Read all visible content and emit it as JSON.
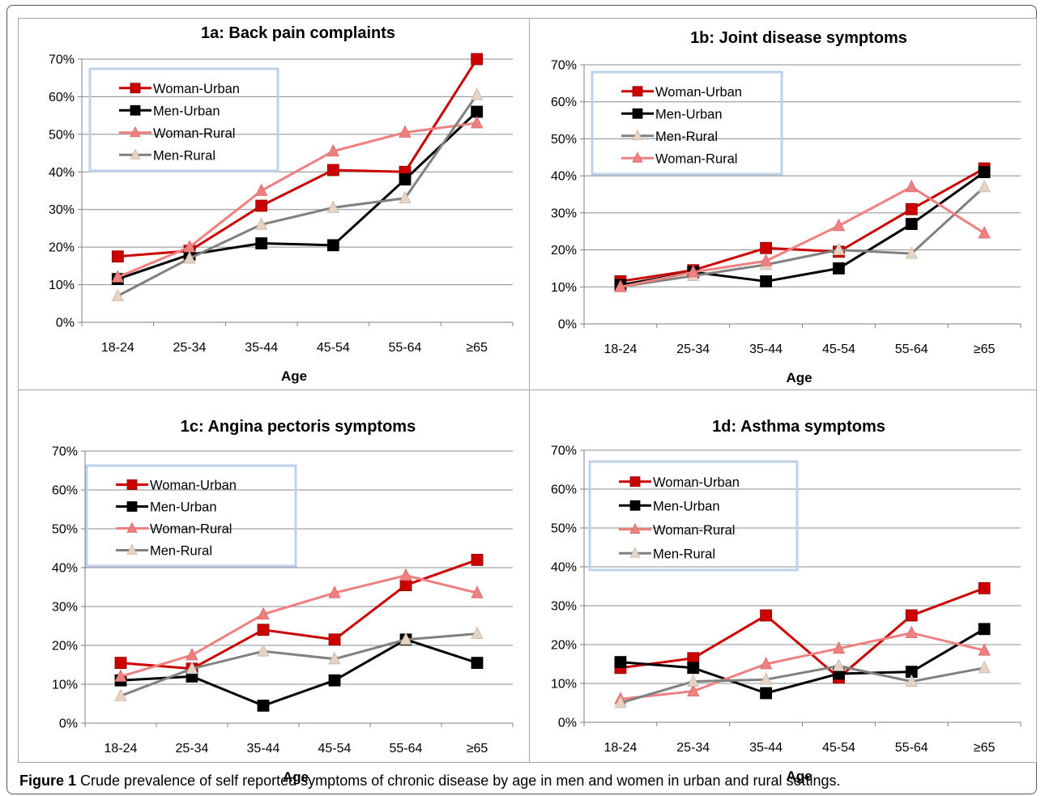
{
  "figure": {
    "label": "Figure 1",
    "caption": "Crude prevalence of self reported symptoms of chronic disease by age in men and women in urban and rural settings."
  },
  "styles": {
    "Woman-Urban": {
      "color": "#cc0000",
      "marker": "square"
    },
    "Men-Urban": {
      "color": "#000000",
      "marker": "square"
    },
    "Woman-Rural": {
      "color": "#f08080",
      "marker": "triangle"
    },
    "Men-Rural": {
      "color": "#808080",
      "marker": "triangle"
    }
  },
  "chart_data": [
    {
      "type": "line",
      "title": "1a: Back pain complaints",
      "xlabel": "Age",
      "ylabel": "",
      "categories": [
        "18-24",
        "25-34",
        "35-44",
        "45-54",
        "55-64",
        "≥65"
      ],
      "yticks": [
        "0%",
        "10%",
        "20%",
        "30%",
        "40%",
        "50%",
        "60%",
        "70%"
      ],
      "ylim": [
        0,
        70
      ],
      "grid": true,
      "legend": "top-left",
      "series": [
        {
          "name": "Woman-Urban",
          "values": [
            17.5,
            19,
            31,
            40.5,
            40,
            70
          ]
        },
        {
          "name": "Men-Urban",
          "values": [
            11.5,
            18,
            21,
            20.5,
            38,
            56
          ]
        },
        {
          "name": "Woman-Rural",
          "values": [
            12,
            20,
            35,
            45.5,
            50.5,
            53
          ]
        },
        {
          "name": "Men-Rural",
          "values": [
            7,
            17,
            26,
            30.5,
            33,
            60.5
          ]
        }
      ]
    },
    {
      "type": "line",
      "title": "1b: Joint disease symptoms",
      "xlabel": "Age",
      "ylabel": "",
      "categories": [
        "18-24",
        "25-34",
        "35-44",
        "45-54",
        "55-64",
        "≥65"
      ],
      "yticks": [
        "0%",
        "10%",
        "20%",
        "30%",
        "40%",
        "50%",
        "60%",
        "70%"
      ],
      "ylim": [
        0,
        70
      ],
      "grid": true,
      "legend": "top-left",
      "series": [
        {
          "name": "Woman-Urban",
          "values": [
            11.5,
            14.5,
            20.5,
            19.5,
            31,
            42
          ]
        },
        {
          "name": "Men-Urban",
          "values": [
            10.5,
            14,
            11.5,
            15,
            27,
            41
          ]
        },
        {
          "name": "Men-Rural",
          "values": [
            10,
            13,
            16,
            20,
            19,
            37
          ]
        },
        {
          "name": "Woman-Rural",
          "values": [
            10,
            14,
            17,
            26.5,
            37,
            24.5
          ]
        }
      ]
    },
    {
      "type": "line",
      "title": "1c: Angina pectoris symptoms",
      "xlabel": "Age",
      "ylabel": "",
      "categories": [
        "18-24",
        "25-34",
        "35-44",
        "45-54",
        "55-64",
        "≥65"
      ],
      "yticks": [
        "0%",
        "10%",
        "20%",
        "30%",
        "40%",
        "50%",
        "60%",
        "70%"
      ],
      "ylim": [
        0,
        70
      ],
      "grid": true,
      "legend": "top-left",
      "series": [
        {
          "name": "Woman-Urban",
          "values": [
            15.5,
            14,
            24,
            21.5,
            35.5,
            42
          ]
        },
        {
          "name": "Men-Urban",
          "values": [
            11,
            12,
            4.5,
            11,
            21.5,
            15.5
          ]
        },
        {
          "name": "Woman-Rural",
          "values": [
            12,
            17.5,
            28,
            33.5,
            38,
            33.5
          ]
        },
        {
          "name": "Men-Rural",
          "values": [
            7,
            14,
            18.5,
            16.5,
            21.5,
            23
          ]
        }
      ]
    },
    {
      "type": "line",
      "title": "1d: Asthma symptoms",
      "xlabel": "Age",
      "ylabel": "",
      "categories": [
        "18-24",
        "25-34",
        "35-44",
        "45-54",
        "55-64",
        "≥65"
      ],
      "yticks": [
        "0%",
        "10%",
        "20%",
        "30%",
        "40%",
        "50%",
        "60%",
        "70%"
      ],
      "ylim": [
        0,
        70
      ],
      "grid": true,
      "legend": "top-left",
      "series": [
        {
          "name": "Woman-Urban",
          "values": [
            14,
            16.5,
            27.5,
            11.5,
            27.5,
            34.5
          ]
        },
        {
          "name": "Men-Urban",
          "values": [
            15.5,
            14,
            7.5,
            12.5,
            13,
            24
          ]
        },
        {
          "name": "Woman-Rural",
          "values": [
            6,
            8,
            15,
            19,
            23,
            18.5
          ]
        },
        {
          "name": "Men-Rural",
          "values": [
            5,
            10.5,
            11,
            14.5,
            10.5,
            14
          ]
        }
      ]
    }
  ]
}
